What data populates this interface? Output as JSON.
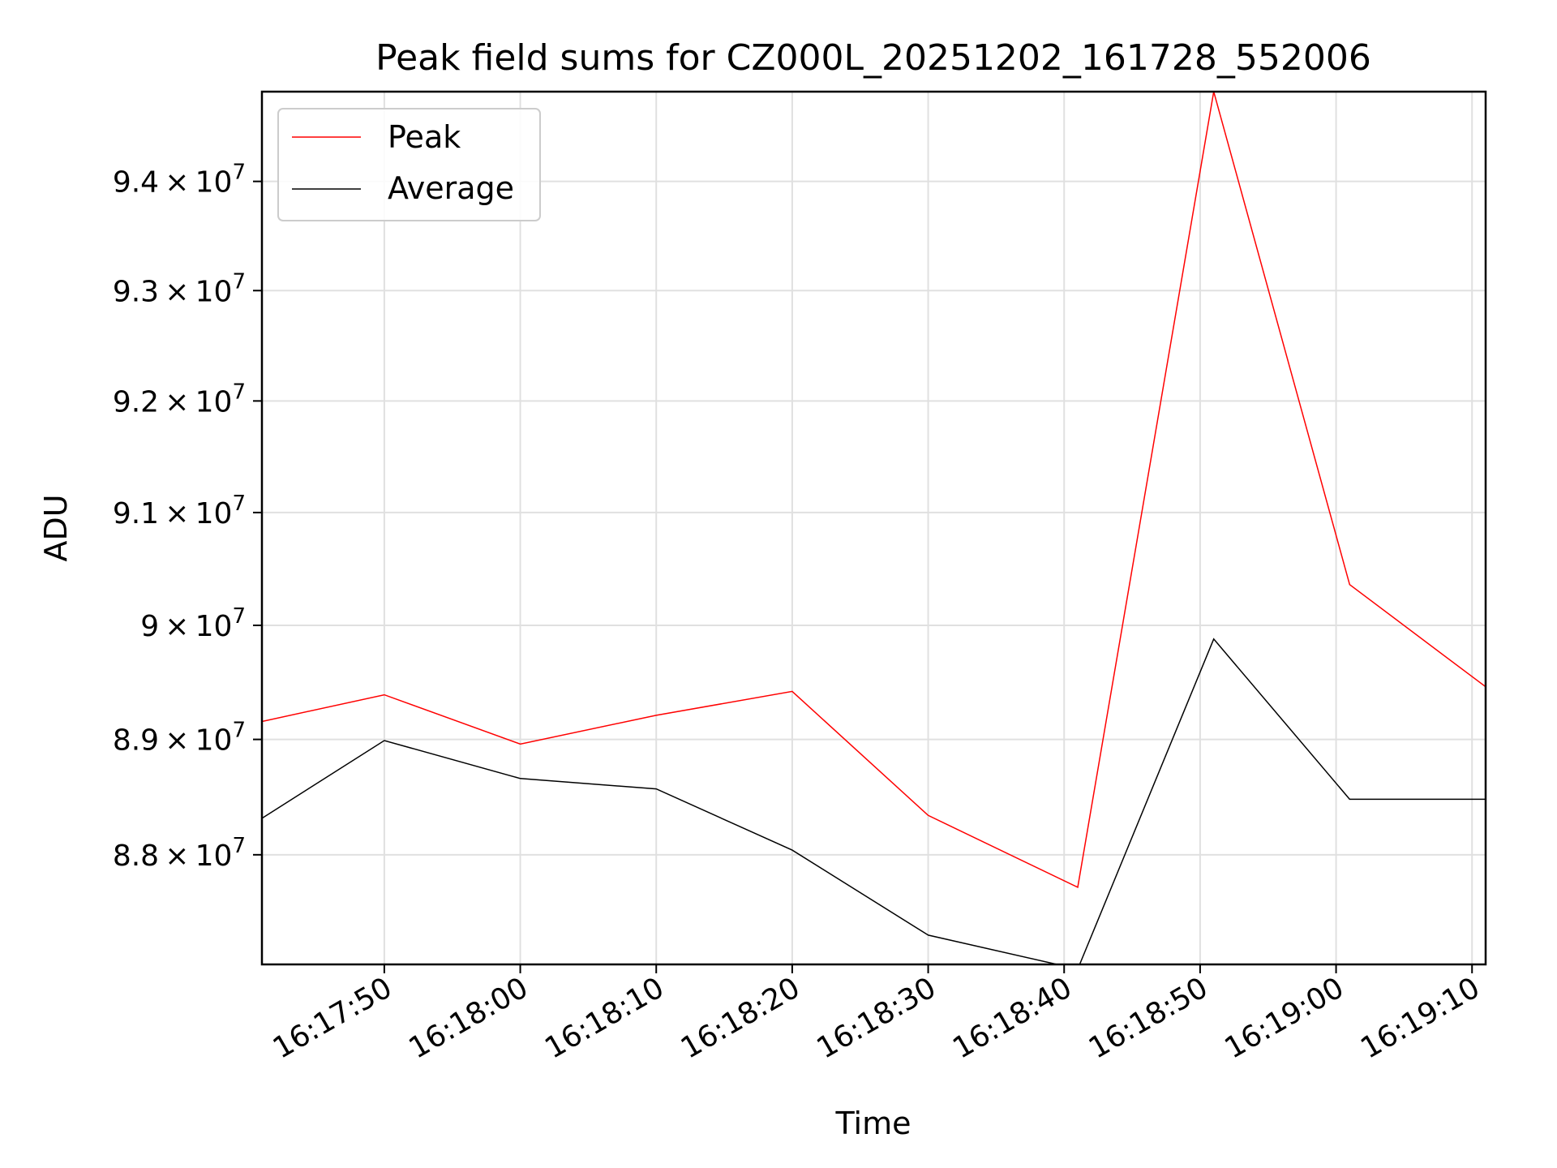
{
  "chart_data": {
    "type": "line",
    "title": "Peak field sums for CZ000L_20251202_161728_552006",
    "xlabel": "Time",
    "ylabel": "ADU",
    "x_ticks": [
      "16:17:50",
      "16:18:00",
      "16:18:10",
      "16:18:20",
      "16:18:30",
      "16:18:40",
      "16:18:50",
      "16:19:00",
      "16:19:10"
    ],
    "y_ticks": [
      {
        "value": 88000000,
        "mantissa": "8.8",
        "times": "×",
        "base": "10",
        "exp": "7"
      },
      {
        "value": 89000000,
        "mantissa": "8.9",
        "times": "×",
        "base": "10",
        "exp": "7"
      },
      {
        "value": 90000000,
        "mantissa": "9",
        "times": "×",
        "base": "10",
        "exp": "7"
      },
      {
        "value": 91000000,
        "mantissa": "9.1",
        "times": "×",
        "base": "10",
        "exp": "7"
      },
      {
        "value": 92000000,
        "mantissa": "9.2",
        "times": "×",
        "base": "10",
        "exp": "7"
      },
      {
        "value": 93000000,
        "mantissa": "9.3",
        "times": "×",
        "base": "10",
        "exp": "7"
      },
      {
        "value": 94000000,
        "mantissa": "9.4",
        "times": "×",
        "base": "10",
        "exp": "7"
      }
    ],
    "x": [
      "16:17:40",
      "16:17:50",
      "16:18:00",
      "16:18:10",
      "16:18:20",
      "16:18:30",
      "16:18:41",
      "16:18:51",
      "16:19:01",
      "16:19:11"
    ],
    "xlim": [
      "16:17:41",
      "16:19:11"
    ],
    "ylim": [
      87060000,
      94830000
    ],
    "yscale": "log",
    "grid": true,
    "legend_position": "top-left",
    "series": [
      {
        "name": "Peak",
        "color": "#ff0000",
        "values": [
          89130000,
          89390000,
          88960000,
          89210000,
          89420000,
          88340000,
          87720000,
          94830000,
          90360000,
          89460000
        ]
      },
      {
        "name": "Average",
        "color": "#000000",
        "values": [
          88240000,
          88990000,
          88660000,
          88570000,
          88040000,
          87310000,
          87020000,
          89880000,
          88480000,
          88480000
        ]
      }
    ]
  }
}
